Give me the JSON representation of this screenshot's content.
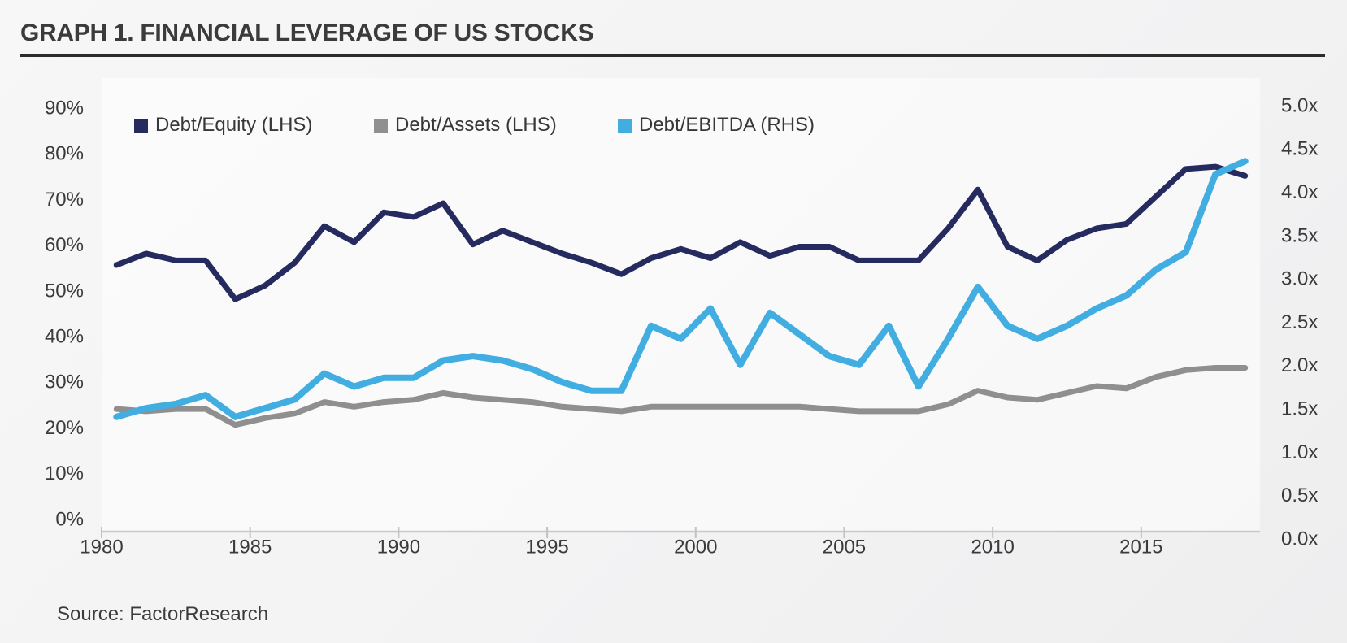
{
  "header": {
    "title": "GRAPH 1. FINANCIAL LEVERAGE OF US STOCKS"
  },
  "source": {
    "text": "Source: FactorResearch"
  },
  "colors": {
    "debt_equity": "#252b5e",
    "debt_assets": "#8f8f8f",
    "debt_ebitda": "#41ade0",
    "axis_line": "#c9c9c9",
    "tick_mark": "#c2c2c2",
    "title_rule": "#2c2c2c"
  },
  "chart_data": {
    "type": "line",
    "title": "GRAPH 1. FINANCIAL LEVERAGE OF US STOCKS",
    "grid": false,
    "legend_position": "top",
    "x": [
      1980,
      1981,
      1982,
      1983,
      1984,
      1985,
      1986,
      1987,
      1988,
      1989,
      1990,
      1991,
      1992,
      1993,
      1994,
      1995,
      1996,
      1997,
      1998,
      1999,
      2000,
      2001,
      2002,
      2003,
      2004,
      2005,
      2006,
      2007,
      2008,
      2009,
      2010,
      2011,
      2012,
      2013,
      2014,
      2015,
      2016,
      2017,
      2018
    ],
    "x_tick_labels": [
      "1980",
      "1985",
      "1990",
      "1995",
      "2000",
      "2005",
      "2010",
      "2015"
    ],
    "left_axis": {
      "range": [
        0,
        90
      ],
      "step": 10,
      "tick_labels": [
        "90%",
        "80%",
        "70%",
        "60%",
        "50%",
        "40%",
        "30%",
        "20%",
        "10%",
        "0%"
      ],
      "unit": "percent"
    },
    "right_axis": {
      "range": [
        0.0,
        5.0
      ],
      "step": 0.5,
      "tick_labels": [
        "5.0x",
        "4.5x",
        "4.0x",
        "3.5x",
        "3.0x",
        "2.5x",
        "2.0x",
        "1.5x",
        "1.0x",
        "0.5x",
        "0.0x"
      ],
      "unit": "multiple"
    },
    "series": [
      {
        "name": "Debt/Equity (LHS)",
        "axis": "left",
        "color": "#252b5e",
        "values": [
          55.5,
          58,
          56.5,
          56.5,
          48,
          51,
          56,
          64,
          60.5,
          67,
          66,
          69,
          60,
          63,
          60.5,
          58,
          56,
          53.5,
          57,
          59,
          57,
          60.5,
          57.5,
          59.5,
          59.5,
          56.5,
          56.5,
          56.5,
          63.5,
          72,
          59.5,
          56.5,
          61,
          63.5,
          64.5,
          70.5,
          76.5,
          77,
          75
        ]
      },
      {
        "name": "Debt/Assets (LHS)",
        "axis": "left",
        "color": "#8f8f8f",
        "values": [
          24,
          23.5,
          24,
          24,
          20.5,
          22,
          23,
          25.5,
          24.5,
          25.5,
          26,
          27.5,
          26.5,
          26,
          25.5,
          24.5,
          24,
          23.5,
          24.5,
          24.5,
          24.5,
          24.5,
          24.5,
          24.5,
          24,
          23.5,
          23.5,
          23.5,
          25,
          28,
          26.5,
          26,
          27.5,
          29,
          28.5,
          31,
          32.5,
          33,
          33
        ]
      },
      {
        "name": "Debt/EBITDA (RHS)",
        "axis": "right",
        "color": "#41ade0",
        "values": [
          1.4,
          1.5,
          1.55,
          1.65,
          1.4,
          1.5,
          1.6,
          1.9,
          1.75,
          1.85,
          1.85,
          2.05,
          2.1,
          2.05,
          1.95,
          1.8,
          1.7,
          1.7,
          2.45,
          2.3,
          2.65,
          2.0,
          2.6,
          2.35,
          2.1,
          2.0,
          2.45,
          1.75,
          2.3,
          2.9,
          2.45,
          2.3,
          2.45,
          2.65,
          2.8,
          3.1,
          3.3,
          4.2,
          4.35
        ]
      }
    ]
  }
}
